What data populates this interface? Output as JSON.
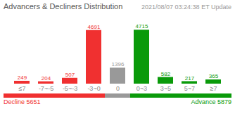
{
  "chart_data": {
    "type": "bar",
    "title": "Advancers & Decliners Distribution",
    "subtitle": "2021/08/07 03:24:38 ET Update",
    "categories": [
      "≤7",
      "-7~-5",
      "-5~-3",
      "-3~0",
      "0",
      "0~3",
      "3~5",
      "5~7",
      "≥7"
    ],
    "values": [
      249,
      204,
      507,
      4691,
      1396,
      4715,
      582,
      217,
      365
    ],
    "colors": [
      "#f03030",
      "#f03030",
      "#f03030",
      "#f03030",
      "#999999",
      "#0a9a0a",
      "#0a9a0a",
      "#0a9a0a",
      "#0a9a0a"
    ],
    "ylim": [
      0,
      5658
    ],
    "tick_labels": "x",
    "grid": false,
    "data_labels": true,
    "annotations": [
      {
        "text": "Decline 5651",
        "color": "#f03030"
      },
      {
        "text": "Advance 5879",
        "color": "#0a9a0a"
      }
    ]
  }
}
